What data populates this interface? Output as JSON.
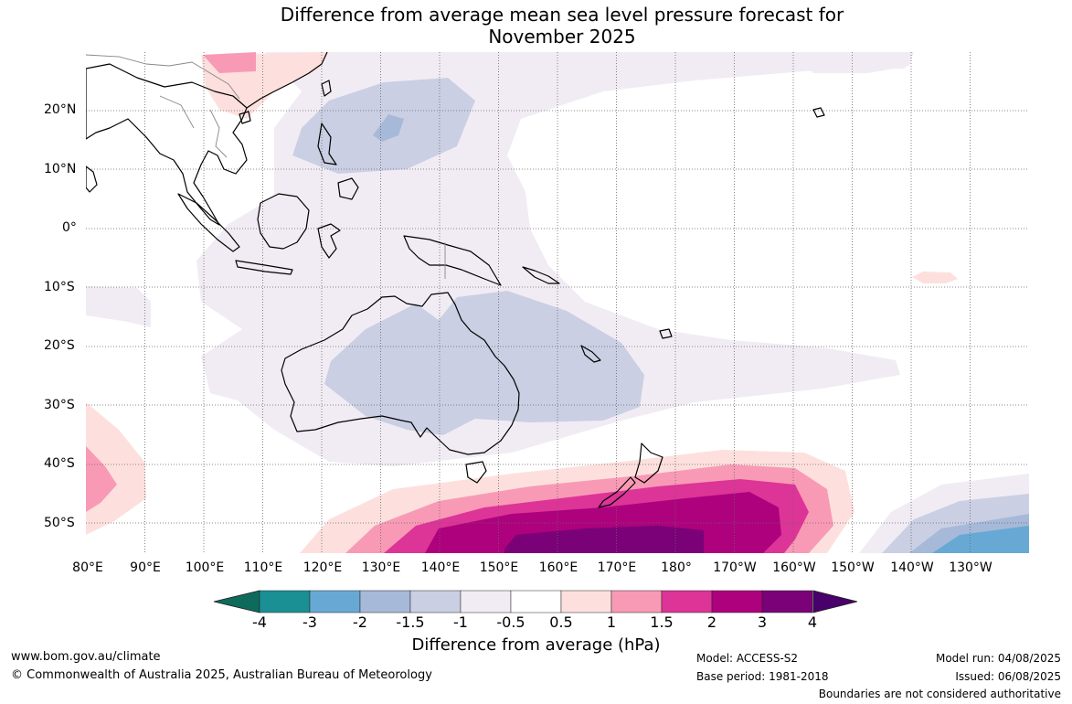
{
  "title_line1": "Difference from average mean sea level pressure forecast for",
  "title_line2": "November 2025",
  "lat_labels": [
    "20°N",
    "10°N",
    "0°",
    "10°S",
    "20°S",
    "30°S",
    "40°S",
    "50°S"
  ],
  "lon_labels": [
    "80°E",
    "90°E",
    "100°E",
    "110°E",
    "120°E",
    "130°E",
    "140°E",
    "150°E",
    "160°E",
    "170°E",
    "180°",
    "170°W",
    "160°W",
    "150°W",
    "140°W",
    "130°W"
  ],
  "colorbar": {
    "labels": [
      "-4",
      "-3",
      "-2",
      "-1.5",
      "-1",
      "-0.5",
      "0.5",
      "1",
      "1.5",
      "2",
      "3",
      "4"
    ],
    "colors": [
      "#1a8f94",
      "#67a9d4",
      "#a6b9d8",
      "#cbcfe3",
      "#f1ecf4",
      "#ffffff",
      "#fde0dd",
      "#f89ab5",
      "#dd3497",
      "#ae017e",
      "#7a0177"
    ],
    "low_extend": "#0e6b5c",
    "high_extend": "#49006a",
    "title": "Difference from average (hPa)"
  },
  "footer": {
    "website": "www.bom.gov.au/climate",
    "copyright": "© Commonwealth of Australia 2025, Australian Bureau of Meteorology",
    "model": "Model: ACCESS-S2",
    "base_period": "Base period: 1981-2018",
    "model_run": "Model run: 04/08/2025",
    "issued": "Issued: 06/08/2025",
    "disclaimer": "Boundaries are not considered authoritative"
  }
}
